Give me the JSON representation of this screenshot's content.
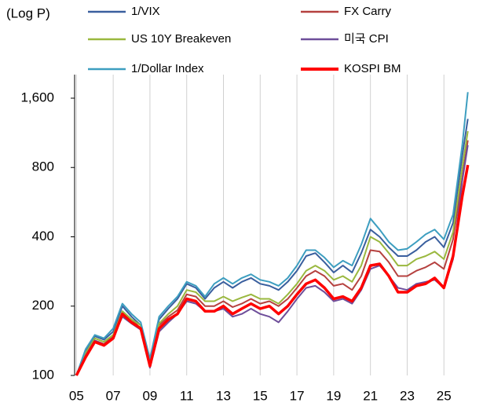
{
  "chart_data": {
    "type": "line",
    "y_label": "(Log P)",
    "log_scale": true,
    "grid": true,
    "x": [
      5,
      5.5,
      6,
      6.5,
      7,
      7.5,
      8,
      8.5,
      9,
      9.5,
      10,
      10.5,
      11,
      11.5,
      12,
      12.5,
      13,
      13.5,
      14,
      14.5,
      15,
      15.5,
      16,
      16.5,
      17,
      17.5,
      18,
      18.5,
      19,
      19.5,
      20,
      20.5,
      21,
      21.5,
      22,
      22.5,
      23,
      23.5,
      24,
      24.5,
      25,
      25.5,
      26,
      26.3
    ],
    "xlim": [
      4.9,
      26.4
    ],
    "xticks": [
      {
        "value": 5,
        "label": "05"
      },
      {
        "value": 7,
        "label": "07"
      },
      {
        "value": 9,
        "label": "09"
      },
      11,
      13,
      15,
      17,
      19,
      21,
      23,
      25
    ],
    "ylim": [
      100,
      2025
    ],
    "yticks": [
      100,
      200,
      400,
      800,
      {
        "value": 1600,
        "label": "1,600"
      }
    ],
    "series": [
      {
        "name": "1/VIX",
        "color": "#3a5f9e",
        "values": [
          100,
          128,
          148,
          143,
          155,
          200,
          180,
          165,
          115,
          175,
          195,
          215,
          250,
          240,
          215,
          240,
          255,
          240,
          255,
          265,
          250,
          245,
          235,
          255,
          285,
          330,
          340,
          310,
          280,
          300,
          280,
          340,
          430,
          400,
          360,
          330,
          330,
          350,
          380,
          400,
          360,
          460,
          900,
          1300
        ]
      },
      {
        "name": "FX Carry",
        "color": "#b5413f",
        "values": [
          100,
          122,
          142,
          137,
          148,
          190,
          175,
          160,
          112,
          165,
          180,
          192,
          225,
          220,
          200,
          200,
          210,
          198,
          205,
          215,
          205,
          210,
          200,
          215,
          240,
          270,
          285,
          270,
          245,
          250,
          235,
          270,
          350,
          345,
          310,
          270,
          270,
          285,
          295,
          310,
          290,
          390,
          720,
          1050
        ]
      },
      {
        "name": "US 10Y Breakeven",
        "color": "#9ab83f",
        "values": [
          100,
          125,
          145,
          140,
          150,
          190,
          175,
          165,
          112,
          168,
          185,
          200,
          235,
          230,
          210,
          210,
          220,
          210,
          218,
          225,
          215,
          215,
          205,
          225,
          250,
          285,
          300,
          285,
          260,
          270,
          255,
          300,
          400,
          380,
          340,
          300,
          300,
          320,
          330,
          345,
          320,
          420,
          800,
          1150
        ]
      },
      {
        "name": "미국 CPI",
        "color": "#6e4e9a",
        "values": [
          100,
          122,
          142,
          136,
          146,
          180,
          168,
          158,
          108,
          155,
          170,
          185,
          210,
          205,
          190,
          190,
          195,
          180,
          185,
          195,
          185,
          180,
          170,
          190,
          215,
          240,
          245,
          230,
          210,
          215,
          205,
          235,
          290,
          300,
          270,
          240,
          235,
          250,
          255,
          260,
          240,
          320,
          700,
          1000
        ]
      },
      {
        "name": "1/Dollar Index",
        "color": "#3d9ec0",
        "values": [
          100,
          130,
          150,
          145,
          160,
          205,
          185,
          170,
          118,
          180,
          200,
          220,
          255,
          245,
          220,
          250,
          265,
          250,
          265,
          275,
          260,
          255,
          245,
          265,
          300,
          350,
          350,
          325,
          295,
          315,
          300,
          370,
          480,
          430,
          380,
          350,
          355,
          380,
          410,
          430,
          390,
          500,
          1000,
          1700
        ]
      },
      {
        "name": "KOSPI BM",
        "color": "#ff0000",
        "values": [
          100,
          120,
          140,
          135,
          145,
          185,
          170,
          160,
          110,
          160,
          175,
          185,
          215,
          210,
          190,
          190,
          200,
          185,
          195,
          205,
          195,
          200,
          185,
          200,
          225,
          250,
          260,
          240,
          215,
          220,
          210,
          240,
          300,
          305,
          270,
          230,
          230,
          245,
          250,
          265,
          240,
          330,
          600,
          820
        ]
      }
    ]
  }
}
